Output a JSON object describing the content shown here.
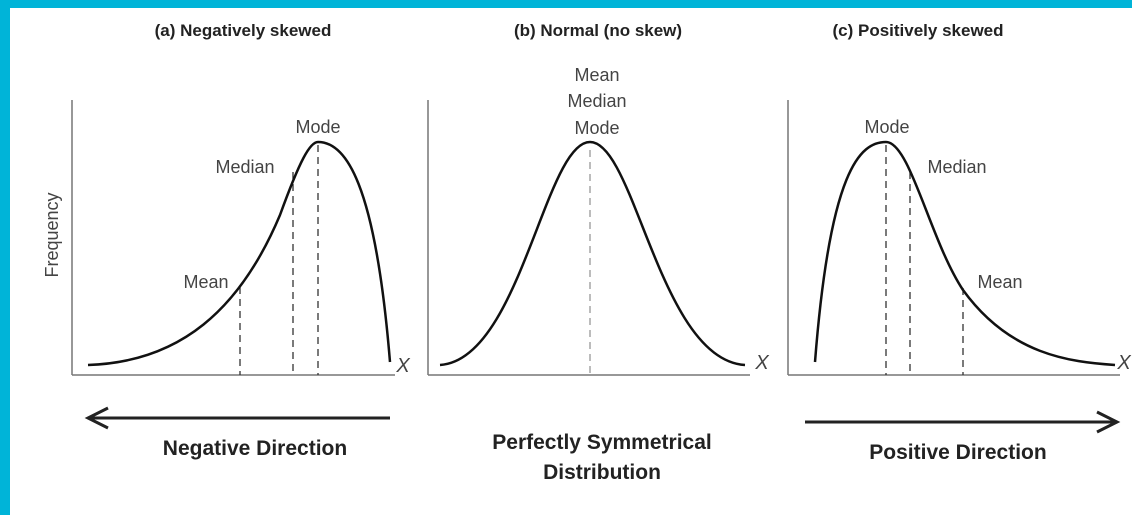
{
  "y_axis_label": "Frequency",
  "panels": [
    {
      "title": "(a) Negatively skewed",
      "labels": [
        "Mode",
        "Median",
        "Mean"
      ],
      "axis": "X",
      "direction": [
        "Negative Direction"
      ]
    },
    {
      "title": "(b) Normal (no skew)",
      "labels": [
        "Mean",
        "Median",
        "Mode"
      ],
      "axis": "X",
      "direction": [
        "Perfectly Symmetrical",
        "Distribution"
      ]
    },
    {
      "title": "(c) Positively skewed",
      "labels": [
        "Mode",
        "Median",
        "Mean"
      ],
      "axis": "X",
      "direction": [
        "Positive Direction"
      ]
    }
  ]
}
